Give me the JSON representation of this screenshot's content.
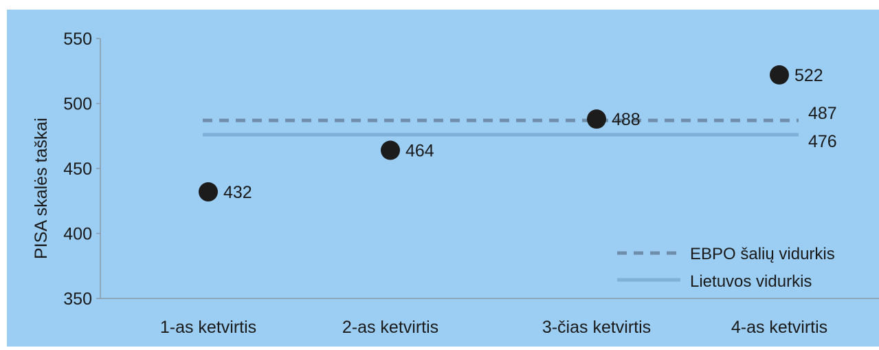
{
  "chart_data": {
    "type": "scatter",
    "ylabel": "PISA skalės taškai",
    "xlabel": "",
    "title": "",
    "categories": [
      "1-as ketvirtis",
      "2-as ketvirtis",
      "3-čias ketvirtis",
      "4-as ketvirtis"
    ],
    "values": [
      432,
      464,
      488,
      522
    ],
    "value_labels": [
      "432",
      "464",
      "488",
      "522"
    ],
    "ylim": [
      350,
      550
    ],
    "yticks": [
      "350",
      "400",
      "450",
      "500",
      "550"
    ],
    "reference_lines": [
      {
        "name": "EBPO šalių vidurkis",
        "value": 487,
        "label": "487",
        "style": "dashed",
        "color": "#6f8ea9"
      },
      {
        "name": "Lietuvos vidurkis",
        "value": 476,
        "label": "476",
        "style": "solid",
        "color": "#7fb0d8"
      }
    ],
    "marker_color": "#1c1c1c",
    "background_color": "#9ccdf3",
    "legend_position": "bottom-right",
    "grid": false
  }
}
